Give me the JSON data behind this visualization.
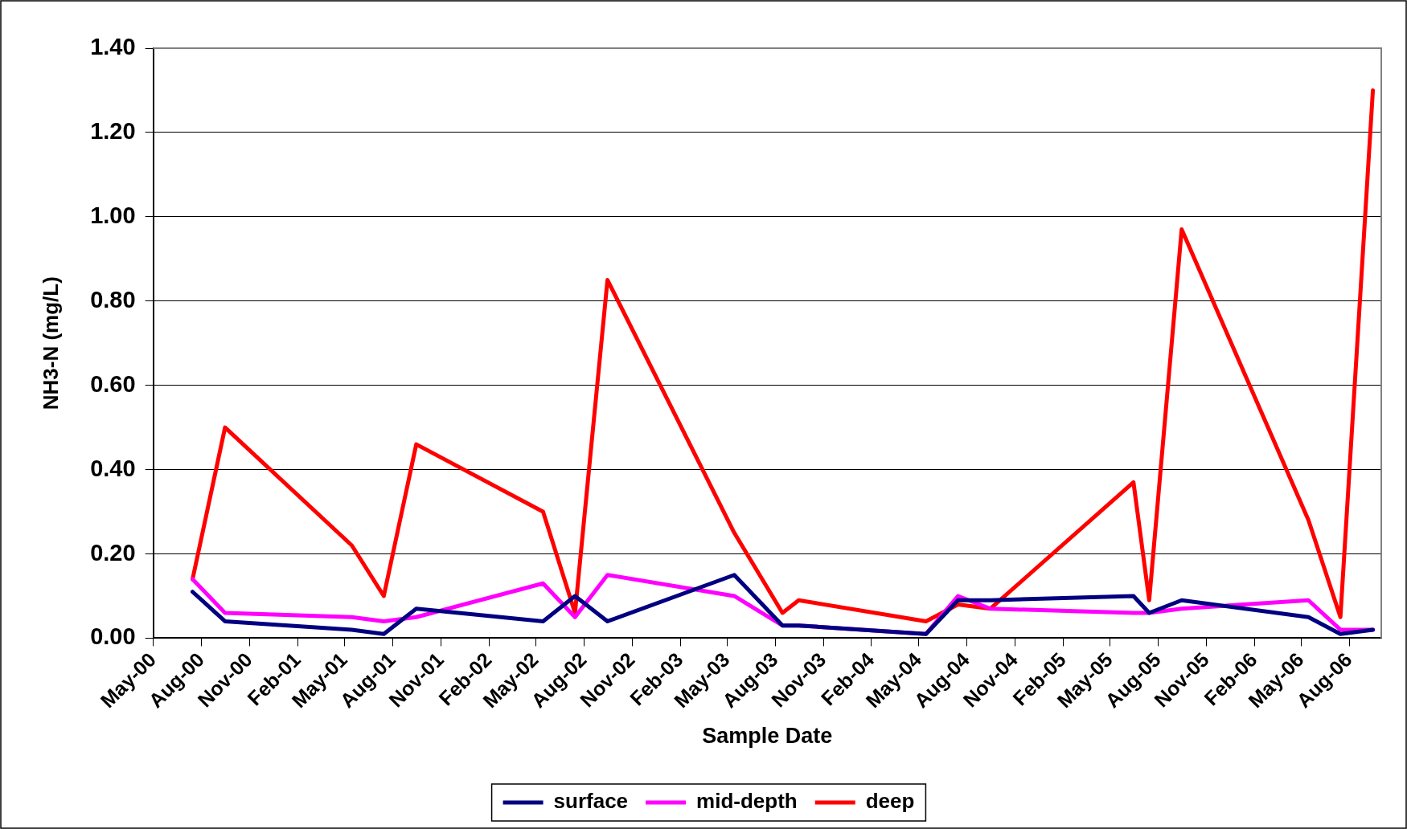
{
  "chart_data": {
    "type": "line",
    "xlabel": "Sample Date",
    "ylabel": "NH3-N (mg/L)",
    "x": [
      "2000-07-15",
      "2000-09-15",
      "2001-05-15",
      "2001-07-15",
      "2001-09-15",
      "2002-05-15",
      "2002-07-15",
      "2002-09-15",
      "2003-05-15",
      "2003-08-15",
      "2003-09-15",
      "2004-05-15",
      "2004-07-15",
      "2004-09-15",
      "2005-06-15",
      "2005-07-15",
      "2005-09-15",
      "2006-05-15",
      "2006-07-15",
      "2006-09-15"
    ],
    "series": [
      {
        "name": "surface",
        "color": "#000080",
        "values": [
          0.11,
          0.04,
          0.02,
          0.01,
          0.07,
          0.04,
          0.1,
          0.04,
          0.15,
          0.03,
          0.03,
          0.01,
          0.09,
          0.09,
          0.1,
          0.06,
          0.09,
          0.05,
          0.01,
          0.02
        ]
      },
      {
        "name": "mid-depth",
        "color": "#ff00ff",
        "values": [
          0.14,
          0.06,
          0.05,
          0.04,
          0.05,
          0.13,
          0.05,
          0.15,
          0.1,
          0.03,
          0.03,
          0.01,
          0.1,
          0.07,
          0.06,
          0.06,
          0.07,
          0.09,
          0.02,
          0.02
        ]
      },
      {
        "name": "deep",
        "color": "#ff0000",
        "values": [
          0.14,
          0.5,
          0.22,
          0.1,
          0.46,
          0.3,
          0.06,
          0.85,
          0.25,
          0.06,
          0.09,
          0.04,
          0.08,
          0.07,
          0.37,
          0.09,
          0.97,
          0.28,
          0.05,
          1.3
        ]
      }
    ],
    "xlim": [
      "2000-05-01",
      "2006-10-01"
    ],
    "xticks": [
      {
        "value": "2000-05-01",
        "label": "May-00"
      },
      {
        "value": "2000-08-01",
        "label": "Aug-00"
      },
      {
        "value": "2000-11-01",
        "label": "Nov-00"
      },
      {
        "value": "2001-02-01",
        "label": "Feb-01"
      },
      {
        "value": "2001-05-01",
        "label": "May-01"
      },
      {
        "value": "2001-08-01",
        "label": "Aug-01"
      },
      {
        "value": "2001-11-01",
        "label": "Nov-01"
      },
      {
        "value": "2002-02-01",
        "label": "Feb-02"
      },
      {
        "value": "2002-05-01",
        "label": "May-02"
      },
      {
        "value": "2002-08-01",
        "label": "Aug-02"
      },
      {
        "value": "2002-11-01",
        "label": "Nov-02"
      },
      {
        "value": "2003-02-01",
        "label": "Feb-03"
      },
      {
        "value": "2003-05-01",
        "label": "May-03"
      },
      {
        "value": "2003-08-01",
        "label": "Aug-03"
      },
      {
        "value": "2003-11-01",
        "label": "Nov-03"
      },
      {
        "value": "2004-02-01",
        "label": "Feb-04"
      },
      {
        "value": "2004-05-01",
        "label": "May-04"
      },
      {
        "value": "2004-08-01",
        "label": "Aug-04"
      },
      {
        "value": "2004-11-01",
        "label": "Nov-04"
      },
      {
        "value": "2005-02-01",
        "label": "Feb-05"
      },
      {
        "value": "2005-05-01",
        "label": "May-05"
      },
      {
        "value": "2005-08-01",
        "label": "Aug-05"
      },
      {
        "value": "2005-11-01",
        "label": "Nov-05"
      },
      {
        "value": "2006-02-01",
        "label": "Feb-06"
      },
      {
        "value": "2006-05-01",
        "label": "May-06"
      },
      {
        "value": "2006-08-01",
        "label": "Aug-06"
      }
    ],
    "ylim": [
      0,
      1.4
    ],
    "yticks": [
      {
        "value": 0,
        "label": "0.00"
      },
      {
        "value": 0.2,
        "label": "0.20"
      },
      {
        "value": 0.4,
        "label": "0.40"
      },
      {
        "value": 0.6,
        "label": "0.60"
      },
      {
        "value": 0.8,
        "label": "0.80"
      },
      {
        "value": 1.0,
        "label": "1.00"
      },
      {
        "value": 1.2,
        "label": "1.20"
      },
      {
        "value": 1.4,
        "label": "1.40"
      }
    ],
    "grid": "y",
    "legend": "bottom",
    "marker": "none",
    "line_style": "solid"
  }
}
